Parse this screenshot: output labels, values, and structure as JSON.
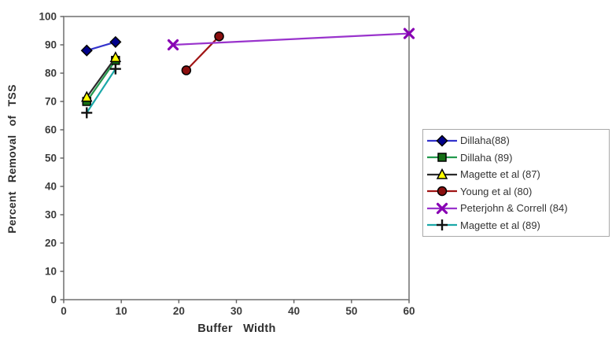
{
  "chart_data": {
    "type": "line",
    "title": "",
    "xlabel": "Buffer Width",
    "ylabel": "Percent Removal of TSS",
    "xlim": [
      0,
      60
    ],
    "ylim": [
      0,
      100
    ],
    "x_ticks": [
      0,
      10,
      20,
      30,
      40,
      50,
      60
    ],
    "y_ticks": [
      0,
      10,
      20,
      30,
      40,
      50,
      60,
      70,
      80,
      90,
      100
    ],
    "grid": false,
    "legend_position": "right",
    "plot_border_color": "#808080",
    "series": [
      {
        "name": "Dillaha(88)",
        "marker": "diamond",
        "line_color": "#3333cc",
        "marker_color": "#00008b",
        "points": [
          [
            4,
            88
          ],
          [
            9,
            91
          ]
        ]
      },
      {
        "name": "Dillaha (89)",
        "marker": "square",
        "line_color": "#22994d",
        "marker_color": "#156e15",
        "points": [
          [
            4,
            70
          ],
          [
            9,
            84.5
          ]
        ]
      },
      {
        "name": "Magette et al (87)",
        "marker": "triangle",
        "line_color": "#2a2a2a",
        "marker_color": "#ffff00",
        "points": [
          [
            4,
            71.5
          ],
          [
            9,
            85.5
          ]
        ]
      },
      {
        "name": "Young et al (80)",
        "marker": "circle",
        "line_color": "#a01414",
        "marker_color": "#8b0f0f",
        "points": [
          [
            21.3,
            81
          ],
          [
            27,
            93
          ]
        ]
      },
      {
        "name": "Peterjohn & Correll (84)",
        "marker": "x",
        "line_color": "#9933cc",
        "marker_color": "#8800b3",
        "points": [
          [
            19,
            90
          ],
          [
            60,
            94
          ]
        ]
      },
      {
        "name": "Magette et al (89)",
        "marker": "plus",
        "line_color": "#1ba8a8",
        "marker_color": "#111111",
        "points": [
          [
            4,
            66
          ],
          [
            9,
            81.5
          ]
        ]
      }
    ]
  }
}
